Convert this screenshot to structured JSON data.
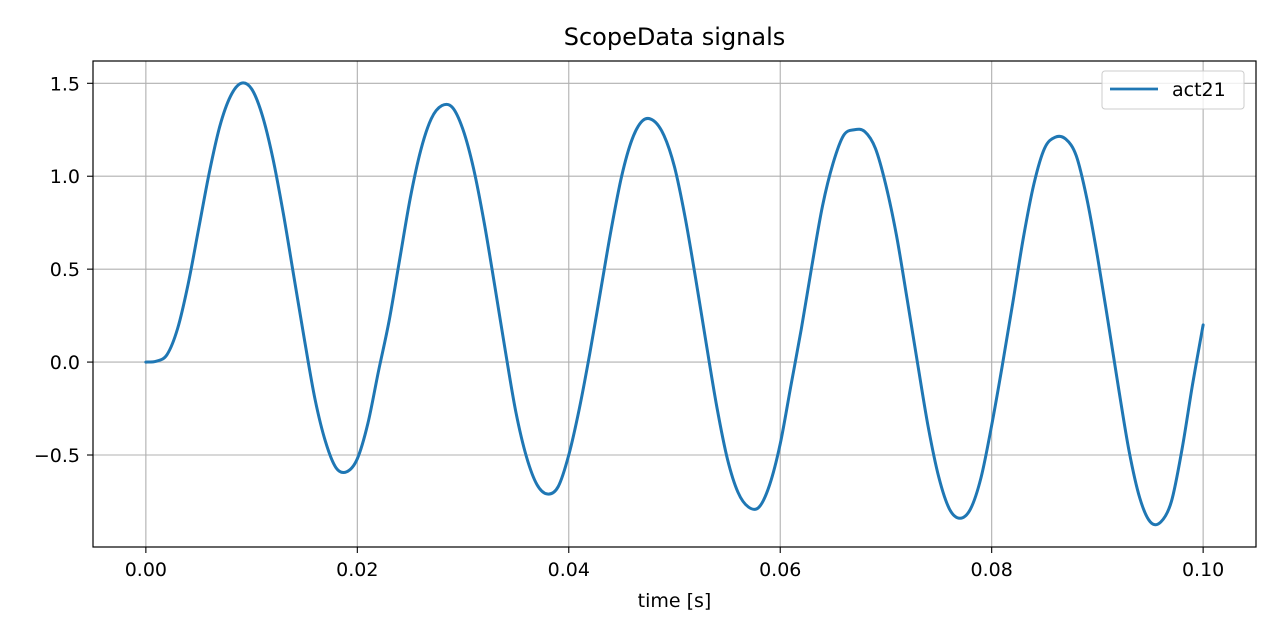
{
  "chart_data": {
    "type": "line",
    "title": "ScopeData signals",
    "xlabel": "time [s]",
    "ylabel": "",
    "xlim": [
      -0.005,
      0.105
    ],
    "ylim": [
      -0.995,
      1.62
    ],
    "xticks": [
      0.0,
      0.02,
      0.04,
      0.06,
      0.08,
      0.1
    ],
    "xtick_labels": [
      "0.00",
      "0.02",
      "0.04",
      "0.06",
      "0.08",
      "0.10"
    ],
    "yticks": [
      -0.5,
      0.0,
      0.5,
      1.0,
      1.5
    ],
    "ytick_labels": [
      "−0.5",
      "0.0",
      "0.5",
      "1.0",
      "1.5"
    ],
    "grid": true,
    "legend": {
      "placement": "top-right",
      "entries": [
        "act21"
      ]
    },
    "series": [
      {
        "name": "act21",
        "color": "#1f77b4",
        "x": [
          0.0,
          0.001,
          0.002,
          0.003,
          0.004,
          0.005,
          0.006,
          0.007,
          0.008,
          0.009,
          0.01,
          0.011,
          0.012,
          0.013,
          0.014,
          0.015,
          0.016,
          0.017,
          0.018,
          0.019,
          0.02,
          0.021,
          0.022,
          0.023,
          0.024,
          0.025,
          0.026,
          0.027,
          0.028,
          0.029,
          0.03,
          0.031,
          0.032,
          0.033,
          0.034,
          0.035,
          0.036,
          0.037,
          0.038,
          0.039,
          0.04,
          0.041,
          0.042,
          0.043,
          0.044,
          0.045,
          0.046,
          0.047,
          0.048,
          0.049,
          0.05,
          0.051,
          0.052,
          0.053,
          0.054,
          0.055,
          0.056,
          0.057,
          0.058,
          0.059,
          0.06,
          0.061,
          0.062,
          0.063,
          0.064,
          0.065,
          0.066,
          0.067,
          0.068,
          0.069,
          0.07,
          0.071,
          0.072,
          0.073,
          0.074,
          0.075,
          0.076,
          0.077,
          0.078,
          0.079,
          0.08,
          0.081,
          0.082,
          0.083,
          0.084,
          0.085,
          0.086,
          0.087,
          0.088,
          0.089,
          0.09,
          0.091,
          0.092,
          0.093,
          0.094,
          0.095,
          0.096,
          0.097,
          0.098,
          0.099,
          0.1
        ],
        "y": [
          0.0,
          0.005,
          0.04,
          0.18,
          0.42,
          0.72,
          1.02,
          1.27,
          1.43,
          1.5,
          1.47,
          1.33,
          1.1,
          0.8,
          0.46,
          0.12,
          -0.2,
          -0.43,
          -0.57,
          -0.59,
          -0.52,
          -0.33,
          -0.05,
          0.22,
          0.55,
          0.88,
          1.14,
          1.31,
          1.38,
          1.37,
          1.25,
          1.04,
          0.75,
          0.41,
          0.06,
          -0.27,
          -0.51,
          -0.66,
          -0.71,
          -0.67,
          -0.5,
          -0.25,
          0.05,
          0.38,
          0.71,
          1.0,
          1.2,
          1.3,
          1.3,
          1.22,
          1.05,
          0.78,
          0.45,
          0.1,
          -0.24,
          -0.52,
          -0.7,
          -0.78,
          -0.78,
          -0.66,
          -0.44,
          -0.13,
          0.18,
          0.52,
          0.84,
          1.07,
          1.22,
          1.25,
          1.24,
          1.15,
          0.95,
          0.68,
          0.34,
          -0.01,
          -0.35,
          -0.62,
          -0.79,
          -0.84,
          -0.79,
          -0.62,
          -0.34,
          -0.02,
          0.32,
          0.67,
          0.96,
          1.15,
          1.21,
          1.2,
          1.11,
          0.88,
          0.57,
          0.22,
          -0.14,
          -0.48,
          -0.73,
          -0.86,
          -0.86,
          -0.75,
          -0.47,
          -0.12,
          0.2
        ]
      }
    ]
  }
}
